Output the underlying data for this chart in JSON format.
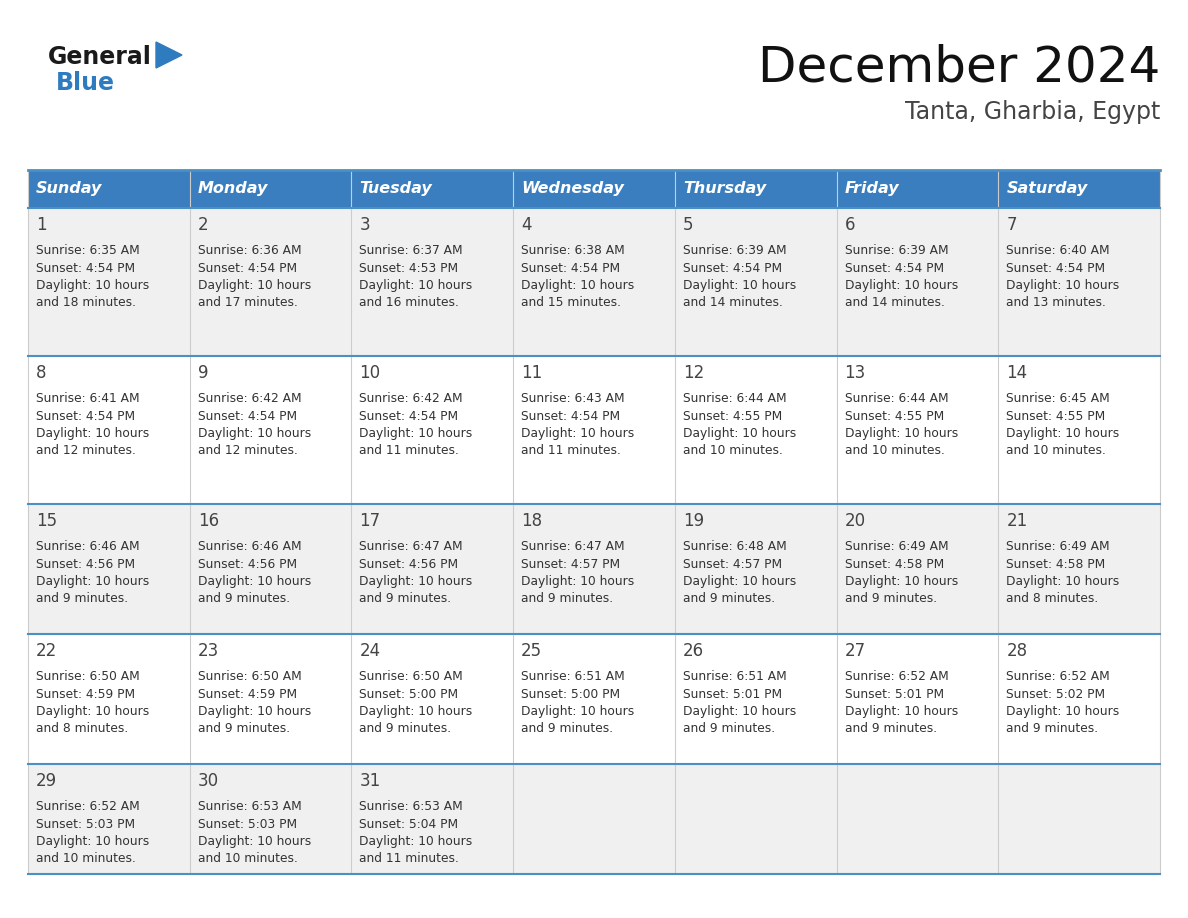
{
  "title": "December 2024",
  "subtitle": "Tanta, Gharbia, Egypt",
  "days_of_week": [
    "Sunday",
    "Monday",
    "Tuesday",
    "Wednesday",
    "Thursday",
    "Friday",
    "Saturday"
  ],
  "header_bg": "#3a7ebf",
  "header_text": "#ffffff",
  "cell_bg_odd": "#f0f0f0",
  "cell_bg_even": "#ffffff",
  "row_border_color": "#4a90c4",
  "col_border_color": "#cccccc",
  "day_num_color": "#444444",
  "text_color": "#333333",
  "title_color": "#111111",
  "subtitle_color": "#444444",
  "general_text_color": "#1a1a1a",
  "blue_color": "#2e7bbf",
  "calendar_data": [
    {
      "day": 1,
      "col": 0,
      "row": 0,
      "sunrise": "6:35 AM",
      "sunset": "4:54 PM",
      "daylight_h": "10 hours",
      "daylight_m": "18 minutes."
    },
    {
      "day": 2,
      "col": 1,
      "row": 0,
      "sunrise": "6:36 AM",
      "sunset": "4:54 PM",
      "daylight_h": "10 hours",
      "daylight_m": "17 minutes."
    },
    {
      "day": 3,
      "col": 2,
      "row": 0,
      "sunrise": "6:37 AM",
      "sunset": "4:53 PM",
      "daylight_h": "10 hours",
      "daylight_m": "16 minutes."
    },
    {
      "day": 4,
      "col": 3,
      "row": 0,
      "sunrise": "6:38 AM",
      "sunset": "4:54 PM",
      "daylight_h": "10 hours",
      "daylight_m": "15 minutes."
    },
    {
      "day": 5,
      "col": 4,
      "row": 0,
      "sunrise": "6:39 AM",
      "sunset": "4:54 PM",
      "daylight_h": "10 hours",
      "daylight_m": "14 minutes."
    },
    {
      "day": 6,
      "col": 5,
      "row": 0,
      "sunrise": "6:39 AM",
      "sunset": "4:54 PM",
      "daylight_h": "10 hours",
      "daylight_m": "14 minutes."
    },
    {
      "day": 7,
      "col": 6,
      "row": 0,
      "sunrise": "6:40 AM",
      "sunset": "4:54 PM",
      "daylight_h": "10 hours",
      "daylight_m": "13 minutes."
    },
    {
      "day": 8,
      "col": 0,
      "row": 1,
      "sunrise": "6:41 AM",
      "sunset": "4:54 PM",
      "daylight_h": "10 hours",
      "daylight_m": "12 minutes."
    },
    {
      "day": 9,
      "col": 1,
      "row": 1,
      "sunrise": "6:42 AM",
      "sunset": "4:54 PM",
      "daylight_h": "10 hours",
      "daylight_m": "12 minutes."
    },
    {
      "day": 10,
      "col": 2,
      "row": 1,
      "sunrise": "6:42 AM",
      "sunset": "4:54 PM",
      "daylight_h": "10 hours",
      "daylight_m": "11 minutes."
    },
    {
      "day": 11,
      "col": 3,
      "row": 1,
      "sunrise": "6:43 AM",
      "sunset": "4:54 PM",
      "daylight_h": "10 hours",
      "daylight_m": "11 minutes."
    },
    {
      "day": 12,
      "col": 4,
      "row": 1,
      "sunrise": "6:44 AM",
      "sunset": "4:55 PM",
      "daylight_h": "10 hours",
      "daylight_m": "10 minutes."
    },
    {
      "day": 13,
      "col": 5,
      "row": 1,
      "sunrise": "6:44 AM",
      "sunset": "4:55 PM",
      "daylight_h": "10 hours",
      "daylight_m": "10 minutes."
    },
    {
      "day": 14,
      "col": 6,
      "row": 1,
      "sunrise": "6:45 AM",
      "sunset": "4:55 PM",
      "daylight_h": "10 hours",
      "daylight_m": "10 minutes."
    },
    {
      "day": 15,
      "col": 0,
      "row": 2,
      "sunrise": "6:46 AM",
      "sunset": "4:56 PM",
      "daylight_h": "10 hours",
      "daylight_m": "9 minutes."
    },
    {
      "day": 16,
      "col": 1,
      "row": 2,
      "sunrise": "6:46 AM",
      "sunset": "4:56 PM",
      "daylight_h": "10 hours",
      "daylight_m": "9 minutes."
    },
    {
      "day": 17,
      "col": 2,
      "row": 2,
      "sunrise": "6:47 AM",
      "sunset": "4:56 PM",
      "daylight_h": "10 hours",
      "daylight_m": "9 minutes."
    },
    {
      "day": 18,
      "col": 3,
      "row": 2,
      "sunrise": "6:47 AM",
      "sunset": "4:57 PM",
      "daylight_h": "10 hours",
      "daylight_m": "9 minutes."
    },
    {
      "day": 19,
      "col": 4,
      "row": 2,
      "sunrise": "6:48 AM",
      "sunset": "4:57 PM",
      "daylight_h": "10 hours",
      "daylight_m": "9 minutes."
    },
    {
      "day": 20,
      "col": 5,
      "row": 2,
      "sunrise": "6:49 AM",
      "sunset": "4:58 PM",
      "daylight_h": "10 hours",
      "daylight_m": "9 minutes."
    },
    {
      "day": 21,
      "col": 6,
      "row": 2,
      "sunrise": "6:49 AM",
      "sunset": "4:58 PM",
      "daylight_h": "10 hours",
      "daylight_m": "8 minutes."
    },
    {
      "day": 22,
      "col": 0,
      "row": 3,
      "sunrise": "6:50 AM",
      "sunset": "4:59 PM",
      "daylight_h": "10 hours",
      "daylight_m": "8 minutes."
    },
    {
      "day": 23,
      "col": 1,
      "row": 3,
      "sunrise": "6:50 AM",
      "sunset": "4:59 PM",
      "daylight_h": "10 hours",
      "daylight_m": "9 minutes."
    },
    {
      "day": 24,
      "col": 2,
      "row": 3,
      "sunrise": "6:50 AM",
      "sunset": "5:00 PM",
      "daylight_h": "10 hours",
      "daylight_m": "9 minutes."
    },
    {
      "day": 25,
      "col": 3,
      "row": 3,
      "sunrise": "6:51 AM",
      "sunset": "5:00 PM",
      "daylight_h": "10 hours",
      "daylight_m": "9 minutes."
    },
    {
      "day": 26,
      "col": 4,
      "row": 3,
      "sunrise": "6:51 AM",
      "sunset": "5:01 PM",
      "daylight_h": "10 hours",
      "daylight_m": "9 minutes."
    },
    {
      "day": 27,
      "col": 5,
      "row": 3,
      "sunrise": "6:52 AM",
      "sunset": "5:01 PM",
      "daylight_h": "10 hours",
      "daylight_m": "9 minutes."
    },
    {
      "day": 28,
      "col": 6,
      "row": 3,
      "sunrise": "6:52 AM",
      "sunset": "5:02 PM",
      "daylight_h": "10 hours",
      "daylight_m": "9 minutes."
    },
    {
      "day": 29,
      "col": 0,
      "row": 4,
      "sunrise": "6:52 AM",
      "sunset": "5:03 PM",
      "daylight_h": "10 hours",
      "daylight_m": "10 minutes."
    },
    {
      "day": 30,
      "col": 1,
      "row": 4,
      "sunrise": "6:53 AM",
      "sunset": "5:03 PM",
      "daylight_h": "10 hours",
      "daylight_m": "10 minutes."
    },
    {
      "day": 31,
      "col": 2,
      "row": 4,
      "sunrise": "6:53 AM",
      "sunset": "5:04 PM",
      "daylight_h": "10 hours",
      "daylight_m": "11 minutes."
    }
  ]
}
